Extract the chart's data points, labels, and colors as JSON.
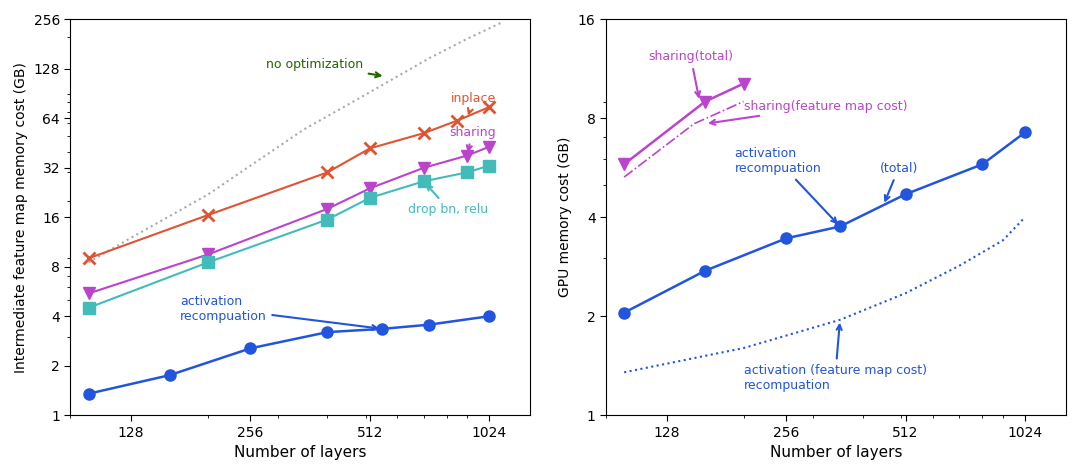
{
  "left": {
    "xlabel": "Number of layers",
    "ylabel": "Intermediate feature map memory cost (GB)",
    "xlim_log": [
      90,
      1300
    ],
    "ylim_log": [
      1,
      256
    ],
    "xticks": [
      128,
      256,
      512,
      1024
    ],
    "yticks": [
      1,
      2,
      4,
      8,
      16,
      32,
      64,
      128,
      256
    ],
    "series": {
      "no_optimization": {
        "x": [
          100,
          128,
          200,
          256,
          350,
          440,
          600,
          720,
          900,
          1100
        ],
        "y": [
          8.5,
          12.0,
          22.0,
          33.0,
          55.0,
          75.0,
          115.0,
          148.0,
          195.0,
          245.0
        ],
        "color": "#aaaaaa",
        "linestyle": "dotted",
        "linewidth": 1.5
      },
      "inplace": {
        "x": [
          100,
          200,
          400,
          512,
          700,
          850,
          1024
        ],
        "y": [
          9.0,
          16.5,
          30.0,
          42.0,
          52.0,
          62.0,
          75.0
        ],
        "color": "#dd5533",
        "linestyle": "-",
        "marker": "x",
        "markersize": 9,
        "linewidth": 1.5
      },
      "sharing": {
        "x": [
          100,
          200,
          400,
          512,
          700,
          900,
          1024
        ],
        "y": [
          5.5,
          9.5,
          18.0,
          24.0,
          32.0,
          38.0,
          43.0
        ],
        "color": "#bb44cc",
        "linestyle": "-",
        "marker": "v",
        "markersize": 9,
        "linewidth": 1.5
      },
      "drop_bn_relu": {
        "x": [
          100,
          200,
          400,
          512,
          700,
          900,
          1024
        ],
        "y": [
          4.5,
          8.5,
          15.5,
          21.0,
          26.5,
          30.0,
          33.0
        ],
        "color": "#44bbbb",
        "linestyle": "-",
        "marker": "s",
        "markersize": 8,
        "linewidth": 1.5
      },
      "activation_recomp": {
        "x": [
          100,
          160,
          256,
          400,
          550,
          720,
          1024
        ],
        "y": [
          1.35,
          1.75,
          2.55,
          3.2,
          3.35,
          3.55,
          4.0
        ],
        "color": "#2255dd",
        "linestyle": "-",
        "marker": "o",
        "markersize": 8,
        "linewidth": 1.8
      }
    }
  },
  "right": {
    "xlabel": "Number of layers",
    "ylabel": "GPU memory cost (GB)",
    "xlim_log": [
      90,
      1300
    ],
    "ylim_log": [
      1,
      16
    ],
    "xticks": [
      128,
      256,
      512,
      1024
    ],
    "yticks": [
      1,
      2,
      4,
      8,
      16
    ],
    "series": {
      "sharing_total": {
        "x": [
          100,
          160,
          200
        ],
        "y": [
          5.8,
          9.0,
          10.2
        ],
        "color": "#bb44cc",
        "linestyle": "-",
        "marker": "v",
        "markersize": 9,
        "linewidth": 1.8
      },
      "sharing_feature": {
        "x": [
          100,
          150,
          200
        ],
        "y": [
          5.3,
          7.7,
          9.0
        ],
        "color": "#bb44cc",
        "linestyle": "-.",
        "linewidth": 1.2
      },
      "activation_total": {
        "x": [
          100,
          160,
          256,
          350,
          512,
          800,
          1024
        ],
        "y": [
          2.05,
          2.75,
          3.45,
          3.75,
          4.7,
          5.8,
          7.25
        ],
        "color": "#2255dd",
        "linestyle": "-",
        "marker": "o",
        "markersize": 8,
        "linewidth": 1.8
      },
      "activation_feature": {
        "x": [
          100,
          200,
          350,
          512,
          700,
          900,
          1024
        ],
        "y": [
          1.35,
          1.6,
          1.95,
          2.35,
          2.85,
          3.4,
          4.0
        ],
        "color": "#2255dd",
        "linestyle": "dotted",
        "linewidth": 1.5
      }
    }
  }
}
